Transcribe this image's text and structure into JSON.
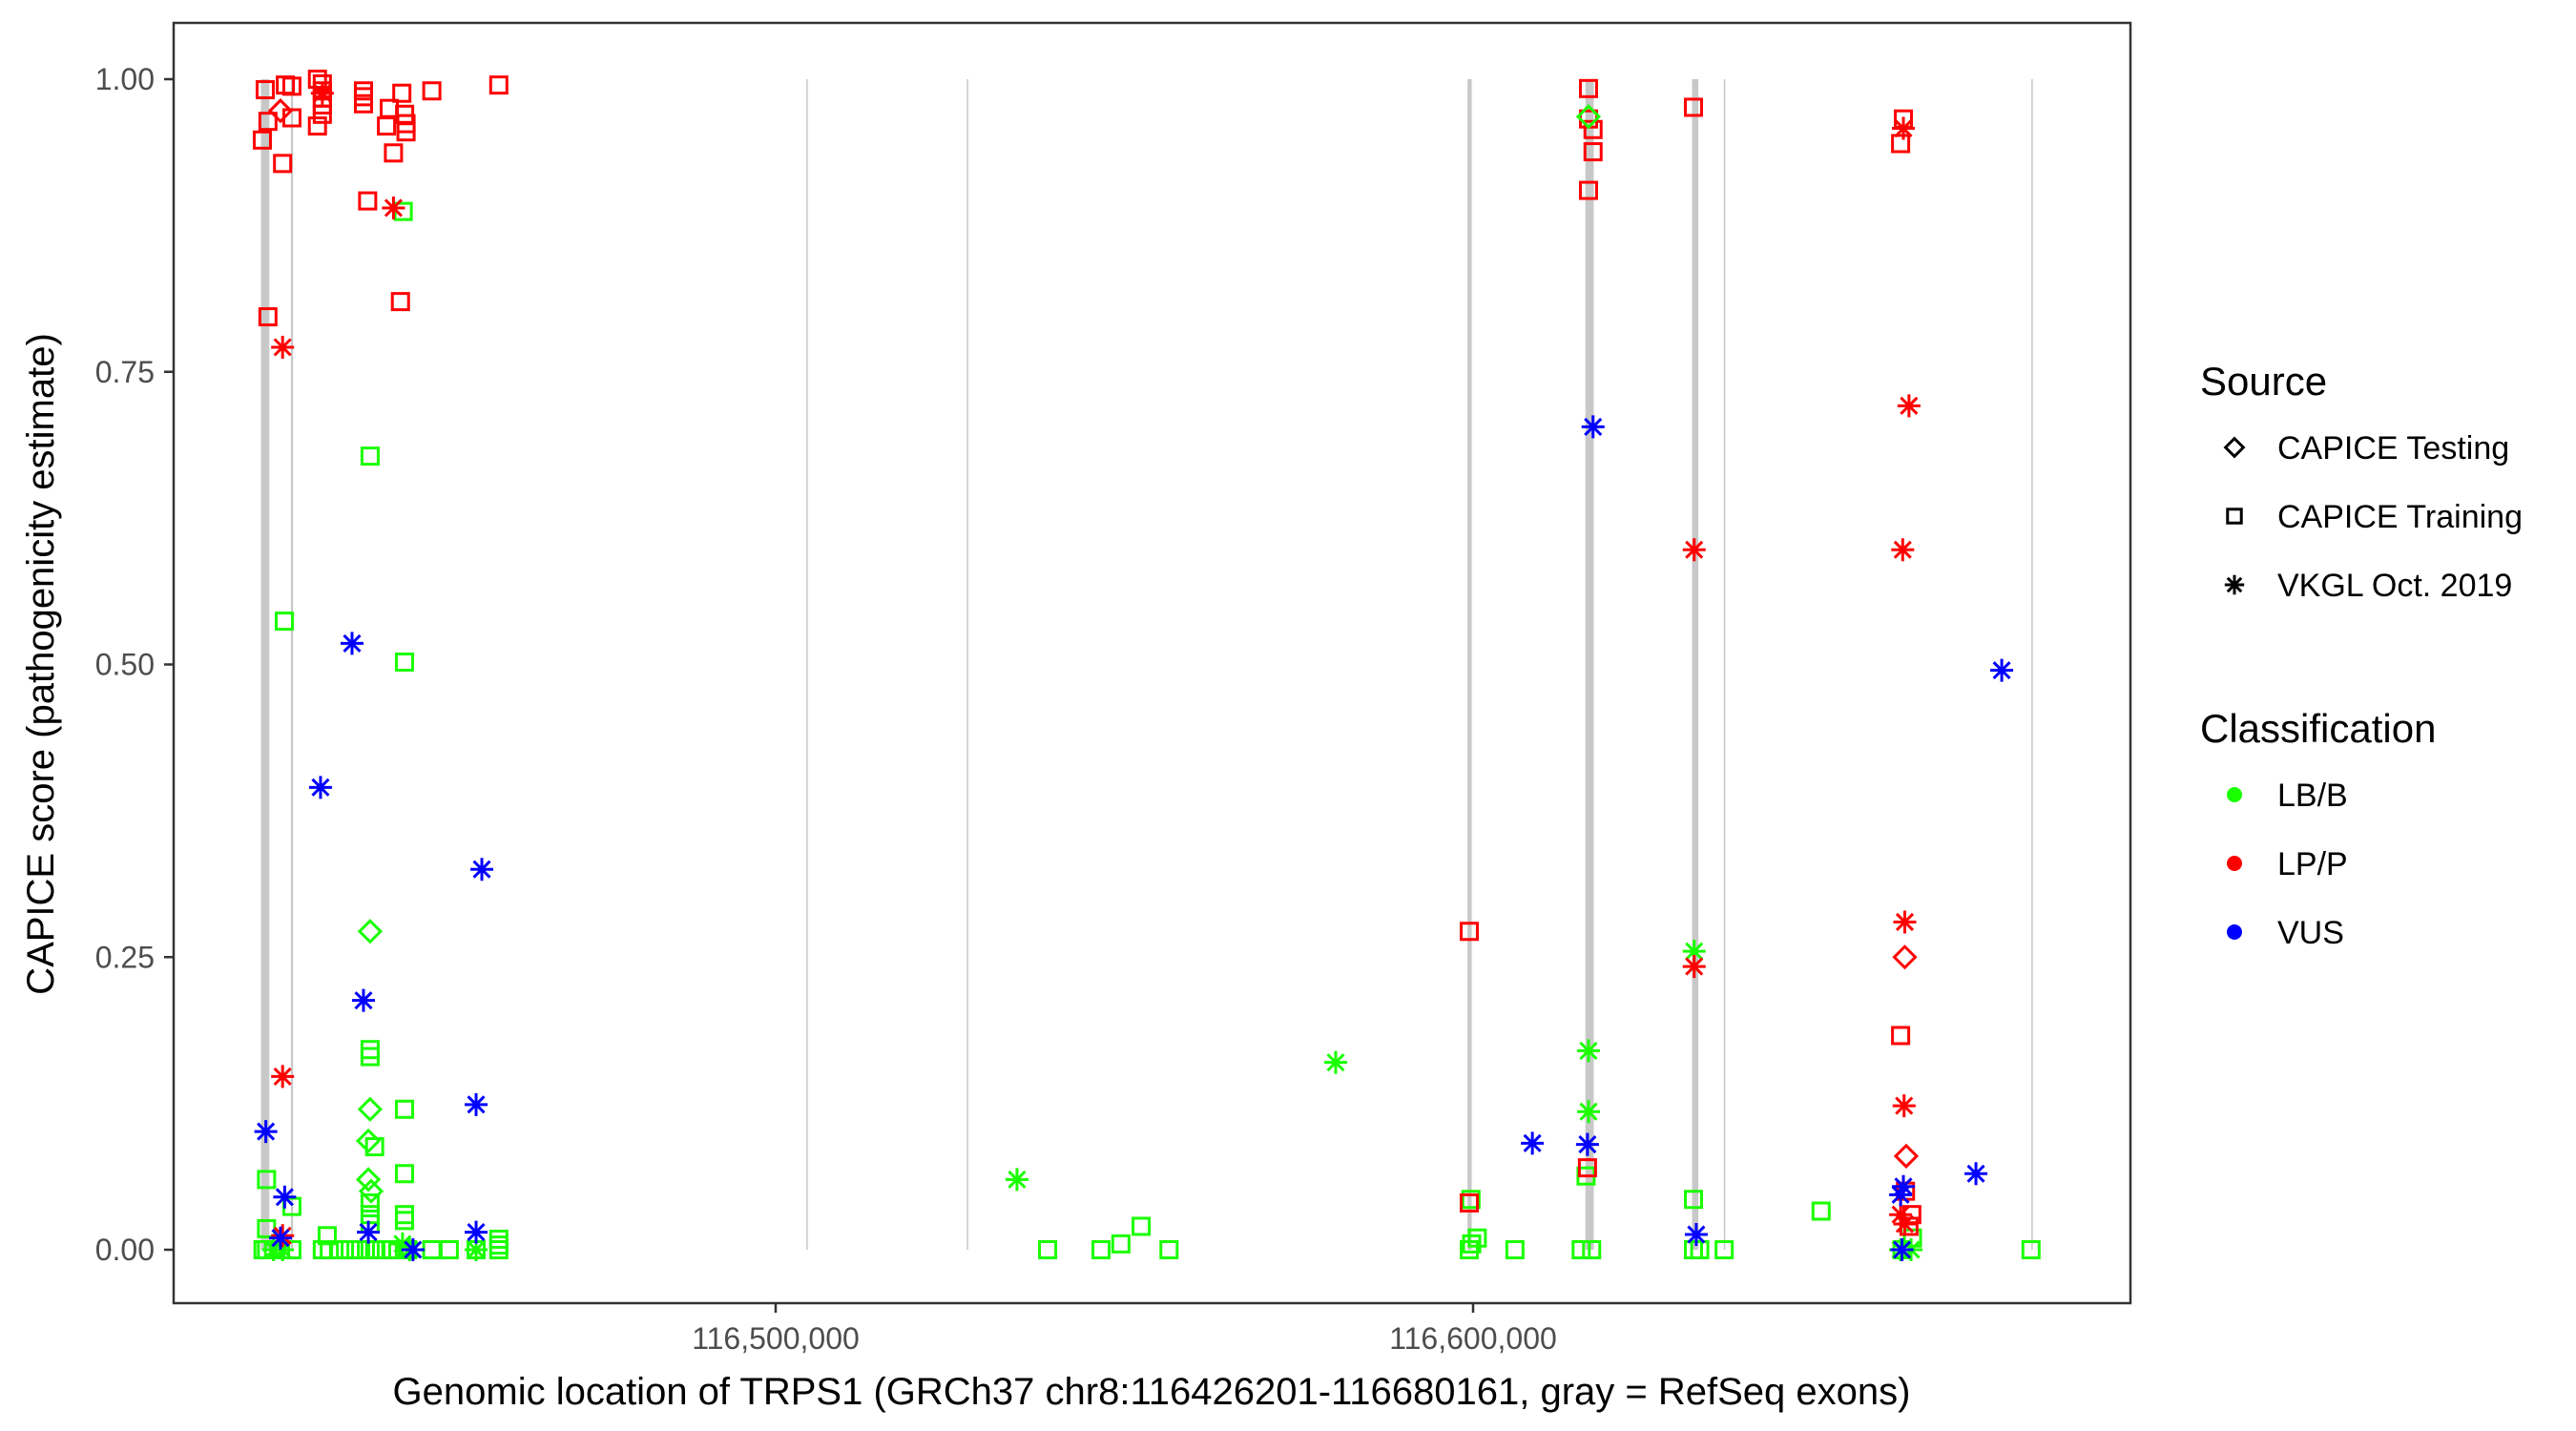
{
  "chart_data": {
    "type": "scatter",
    "xlabel": "Genomic location of TRPS1 (GRCh37 chr8:116426201-116680161, gray = RefSeq exons)",
    "ylabel": "CAPICE score (pathogenicity estimate)",
    "xlim": [
      116426201,
      116680161
    ],
    "ylim": [
      0,
      1
    ],
    "x_ticks": [
      116500000,
      116600000
    ],
    "x_tick_labels": [
      "116,500,000",
      "116,600,000"
    ],
    "y_ticks": [
      0,
      0.25,
      0.5,
      0.75,
      1.0
    ],
    "y_tick_labels": [
      "0.00",
      "0.25",
      "0.50",
      "0.75",
      "1.00"
    ],
    "grid": false,
    "legend_position": "right",
    "exons": [
      [
        116426200,
        116427400
      ],
      [
        116430500,
        116430800
      ],
      [
        116504400,
        116504600
      ],
      [
        116527400,
        116527600
      ],
      [
        116599200,
        116599800
      ],
      [
        116616100,
        116617300
      ],
      [
        116631400,
        116632300
      ],
      [
        116635950,
        116636100
      ],
      [
        116680050,
        116680161
      ]
    ],
    "exon_color": "#c8c8c8",
    "legend": {
      "source_title": "Source",
      "sources": [
        {
          "label": "CAPICE Testing",
          "shape": "diamond"
        },
        {
          "label": "CAPICE Training",
          "shape": "square"
        },
        {
          "label": "VKGL Oct. 2019",
          "shape": "asterisk"
        }
      ],
      "classification_title": "Classification",
      "classes": [
        {
          "label": "LB/B",
          "color": "#1aff00"
        },
        {
          "label": "LP/P",
          "color": "#ff0000"
        },
        {
          "label": "VUS",
          "color": "#0000ff"
        }
      ]
    },
    "series": [
      {
        "source": "CAPICE Training",
        "classification": "LB/B",
        "points": [
          [
            116446600,
            0.887
          ],
          [
            116441850,
            0.678
          ],
          [
            116429550,
            0.537
          ],
          [
            116446780,
            0.502
          ],
          [
            116441850,
            0.171
          ],
          [
            116441850,
            0.165
          ],
          [
            116446780,
            0.12
          ],
          [
            116442500,
            0.088
          ],
          [
            116427000,
            0.06
          ],
          [
            116446780,
            0.065
          ],
          [
            116430640,
            0.037
          ],
          [
            116441850,
            0.04
          ],
          [
            116441850,
            0.03
          ],
          [
            116441850,
            0.022
          ],
          [
            116446780,
            0.03
          ],
          [
            116446780,
            0.025
          ],
          [
            116427000,
            0.018
          ],
          [
            116435700,
            0.012
          ],
          [
            116460300,
            0.009
          ],
          [
            116460300,
            0.004
          ],
          [
            116616200,
            0.063
          ],
          [
            116599700,
            0.043
          ],
          [
            116631600,
            0.043
          ],
          [
            116649900,
            0.033
          ],
          [
            116552400,
            0.02
          ],
          [
            116549500,
            0.005
          ],
          [
            116426500,
            0
          ],
          [
            116427000,
            0
          ],
          [
            116428000,
            0
          ],
          [
            116429000,
            0
          ],
          [
            116430640,
            0
          ],
          [
            116435000,
            0
          ],
          [
            116436000,
            0
          ],
          [
            116437500,
            0
          ],
          [
            116439000,
            0
          ],
          [
            116440500,
            0
          ],
          [
            116441850,
            0
          ],
          [
            116442500,
            0
          ],
          [
            116443500,
            0
          ],
          [
            116445000,
            0
          ],
          [
            116446780,
            0
          ],
          [
            116447200,
            0
          ],
          [
            116450700,
            0
          ],
          [
            116453200,
            0
          ],
          [
            116457050,
            0
          ],
          [
            116460300,
            0
          ],
          [
            116539000,
            0
          ],
          [
            116546650,
            0
          ],
          [
            116556400,
            0
          ],
          [
            116599450,
            0
          ],
          [
            116599800,
            0.005
          ],
          [
            116600600,
            0.01
          ],
          [
            116606000,
            0
          ],
          [
            116615500,
            0
          ],
          [
            116617000,
            0
          ],
          [
            116631600,
            0
          ],
          [
            116632500,
            0
          ],
          [
            116636000,
            0
          ],
          [
            116661500,
            0
          ],
          [
            116663000,
            0.01
          ],
          [
            116680000,
            0
          ]
        ]
      },
      {
        "source": "CAPICE Training",
        "classification": "LP/P",
        "points": [
          [
            116426810,
            0.991
          ],
          [
            116429700,
            0.995
          ],
          [
            116430640,
            0.994
          ],
          [
            116427200,
            0.964
          ],
          [
            116430640,
            0.967
          ],
          [
            116426400,
            0.948
          ],
          [
            116429300,
            0.928
          ],
          [
            116434300,
            1.0
          ],
          [
            116435000,
            0.996
          ],
          [
            116435000,
            0.99
          ],
          [
            116435000,
            0.984
          ],
          [
            116435000,
            0.978
          ],
          [
            116435000,
            0.97
          ],
          [
            116434300,
            0.96
          ],
          [
            116440900,
            0.99
          ],
          [
            116440900,
            0.985
          ],
          [
            116440900,
            0.979
          ],
          [
            116446400,
            0.988
          ],
          [
            116450700,
            0.99
          ],
          [
            116460300,
            0.995
          ],
          [
            116444600,
            0.975
          ],
          [
            116446800,
            0.97
          ],
          [
            116444200,
            0.96
          ],
          [
            116447000,
            0.962
          ],
          [
            116447000,
            0.955
          ],
          [
            116445200,
            0.937
          ],
          [
            116441500,
            0.896
          ],
          [
            116446200,
            0.81
          ],
          [
            116427200,
            0.797
          ],
          [
            116616550,
            0.992
          ],
          [
            116616550,
            0.966
          ],
          [
            116617200,
            0.957
          ],
          [
            116617200,
            0.938
          ],
          [
            116616550,
            0.905
          ],
          [
            116631600,
            0.976
          ],
          [
            116661700,
            0.966
          ],
          [
            116661300,
            0.945
          ],
          [
            116599450,
            0.272
          ],
          [
            116661300,
            0.183
          ],
          [
            116616400,
            0.07
          ],
          [
            116599450,
            0.04
          ],
          [
            116662000,
            0.05
          ],
          [
            116662900,
            0.03
          ],
          [
            116662500,
            0.02
          ]
        ]
      },
      {
        "source": "CAPICE Testing",
        "classification": "LB/B",
        "points": [
          [
            116616550,
            0.968
          ],
          [
            116441850,
            0.272
          ],
          [
            116441850,
            0.12
          ],
          [
            116441600,
            0.093
          ],
          [
            116441600,
            0.06
          ],
          [
            116442000,
            0.05
          ]
        ]
      },
      {
        "source": "CAPICE Testing",
        "classification": "LP/P",
        "points": [
          [
            116429000,
            0.973
          ],
          [
            116661900,
            0.25
          ],
          [
            116662100,
            0.08
          ]
        ]
      },
      {
        "source": "VKGL Oct. 2019",
        "classification": "LB/B",
        "points": [
          [
            116534600,
            0.06
          ],
          [
            116580300,
            0.16
          ],
          [
            116616550,
            0.17
          ],
          [
            116616550,
            0.118
          ],
          [
            116631700,
            0.255
          ],
          [
            116428000,
            0
          ],
          [
            116429300,
            0
          ],
          [
            116446500,
            0.005
          ],
          [
            116447500,
            0
          ],
          [
            116457050,
            0
          ],
          [
            116661300,
            0
          ],
          [
            116662800,
            0
          ]
        ]
      },
      {
        "source": "VKGL Oct. 2019",
        "classification": "LP/P",
        "points": [
          [
            116435000,
            0.988
          ],
          [
            116445200,
            0.89
          ],
          [
            116429300,
            0.771
          ],
          [
            116429300,
            0.148
          ],
          [
            116429300,
            0.012
          ],
          [
            116661700,
            0.958
          ],
          [
            116662500,
            0.721
          ],
          [
            116631700,
            0.598
          ],
          [
            116661600,
            0.598
          ],
          [
            116631700,
            0.242
          ],
          [
            116661900,
            0.28
          ],
          [
            116661800,
            0.123
          ],
          [
            116661300,
            0.03
          ],
          [
            116661900,
            0.022
          ]
        ]
      },
      {
        "source": "VKGL Oct. 2019",
        "classification": "VUS",
        "points": [
          [
            116439260,
            0.518
          ],
          [
            116434740,
            0.395
          ],
          [
            116457870,
            0.325
          ],
          [
            116440900,
            0.213
          ],
          [
            116457050,
            0.124
          ],
          [
            116426900,
            0.101
          ],
          [
            116429600,
            0.045
          ],
          [
            116441600,
            0.015
          ],
          [
            116457050,
            0.015
          ],
          [
            116448000,
            0
          ],
          [
            116429000,
            0.01
          ],
          [
            116617200,
            0.703
          ],
          [
            116675800,
            0.495
          ],
          [
            116608500,
            0.091
          ],
          [
            116616400,
            0.09
          ],
          [
            116672100,
            0.065
          ],
          [
            116661700,
            0.054
          ],
          [
            116661300,
            0.047
          ],
          [
            116632000,
            0.013
          ],
          [
            116661500,
            0
          ]
        ]
      }
    ]
  }
}
